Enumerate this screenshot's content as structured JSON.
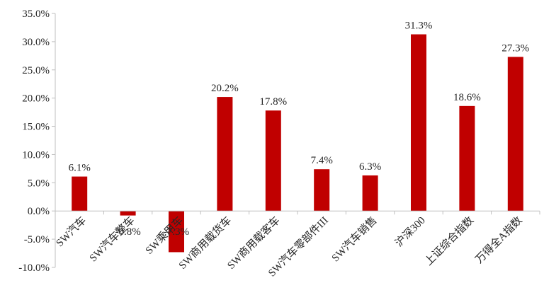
{
  "chart_data": {
    "type": "bar",
    "title": "",
    "xlabel": "",
    "ylabel": "",
    "categories": [
      "SW汽车",
      "SW汽车整车",
      "SW乘用车",
      "SW商用载货车",
      "SW商用载客车",
      "SW汽车零部件III",
      "SW汽车销售",
      "沪深300",
      "上证综合指数",
      "万得全A指数"
    ],
    "values": [
      6.1,
      -0.8,
      -7.3,
      20.2,
      17.8,
      7.4,
      6.3,
      31.3,
      18.6,
      27.3
    ],
    "data_labels": [
      "6.1%",
      "-0.8%",
      "-7.3%",
      "20.2%",
      "17.8%",
      "7.4%",
      "6.3%",
      "31.3%",
      "18.6%",
      "27.3%"
    ],
    "y_ticks": [
      35,
      30,
      25,
      20,
      15,
      10,
      5,
      0,
      -5,
      -10
    ],
    "y_tick_labels": [
      "35.0%",
      "30.0%",
      "25.0%",
      "20.0%",
      "15.0%",
      "10.0%",
      "5.0%",
      "0.0%",
      "-5.0%",
      "-10.0%"
    ],
    "ylim": [
      -10,
      35
    ],
    "bar_color": "#C00000",
    "grid": false,
    "legend": "none"
  }
}
